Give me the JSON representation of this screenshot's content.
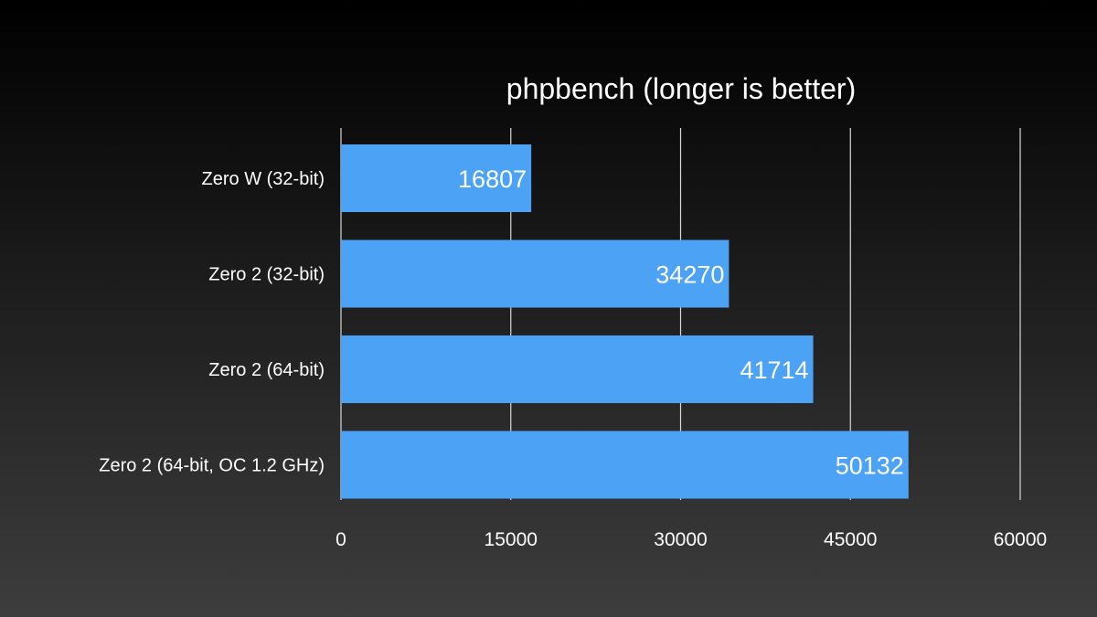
{
  "chart_data": {
    "type": "bar",
    "orientation": "horizontal",
    "title": "phpbench (longer is better)",
    "categories": [
      "Zero W (32-bit)",
      "Zero 2 (32-bit)",
      "Zero 2 (64-bit)",
      "Zero 2 (64-bit, OC 1.2 GHz)"
    ],
    "values": [
      16807,
      34270,
      41714,
      50132
    ],
    "data_labels": [
      "16807",
      "34270",
      "41714",
      "50132"
    ],
    "xlim": [
      0,
      60000
    ],
    "x_ticks": [
      0,
      15000,
      30000,
      45000,
      60000
    ],
    "x_tick_labels": [
      "0",
      "15000",
      "30000",
      "45000",
      "60000"
    ],
    "grid": true,
    "legend": "none",
    "colors": {
      "bar": "#4ca2f5",
      "grid": "#d8d8d8",
      "text": "#ffffff"
    }
  }
}
